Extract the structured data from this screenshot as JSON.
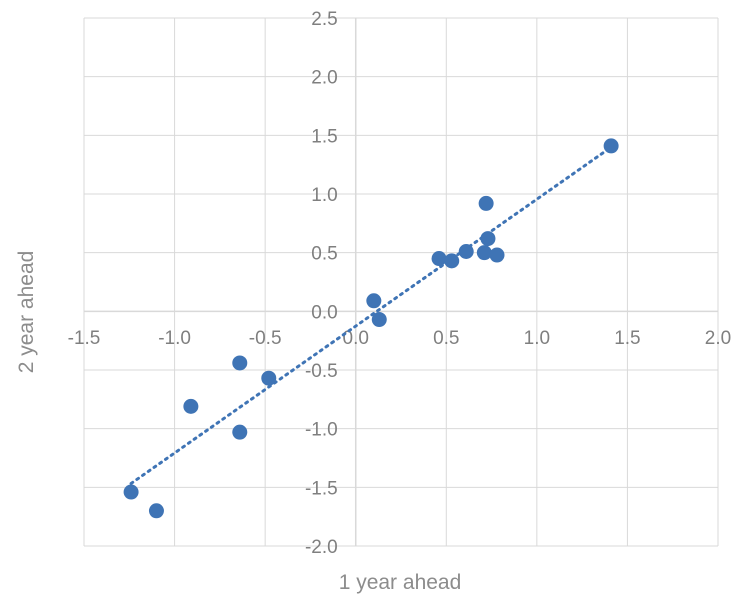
{
  "chart_data": {
    "type": "scatter",
    "title": "",
    "xlabel": "1 year ahead",
    "ylabel": "2 year ahead",
    "xlim": [
      -1.5,
      2.0
    ],
    "ylim": [
      -2.0,
      2.5
    ],
    "x_ticks": [
      "-1.5",
      "-1.0",
      "-0.5",
      "0.0",
      "0.5",
      "1.0",
      "1.5",
      "2.0"
    ],
    "y_ticks": [
      "2.5",
      "2.0",
      "1.5",
      "1.0",
      "0.5",
      "0.0",
      "-0.5",
      "-1.0",
      "-1.5",
      "-2.0"
    ],
    "grid": true,
    "legend": "none",
    "trendline": {
      "type": "linear",
      "style": "dotted"
    },
    "series": [
      {
        "color": "#3f74b5",
        "points": [
          [
            -1.24,
            -1.54
          ],
          [
            -1.1,
            -1.7
          ],
          [
            -0.91,
            -0.81
          ],
          [
            -0.64,
            -0.44
          ],
          [
            -0.64,
            -1.03
          ],
          [
            -0.48,
            -0.57
          ],
          [
            0.1,
            0.09
          ],
          [
            0.13,
            -0.07
          ],
          [
            0.46,
            0.45
          ],
          [
            0.53,
            0.43
          ],
          [
            0.61,
            0.51
          ],
          [
            0.71,
            0.5
          ],
          [
            0.72,
            0.92
          ],
          [
            0.73,
            0.62
          ],
          [
            0.78,
            0.48
          ],
          [
            1.41,
            1.41
          ]
        ]
      }
    ],
    "colors": {
      "grid": "#d9d9d9",
      "trend": "#3f74b5",
      "text": "#7f7f7f"
    }
  }
}
